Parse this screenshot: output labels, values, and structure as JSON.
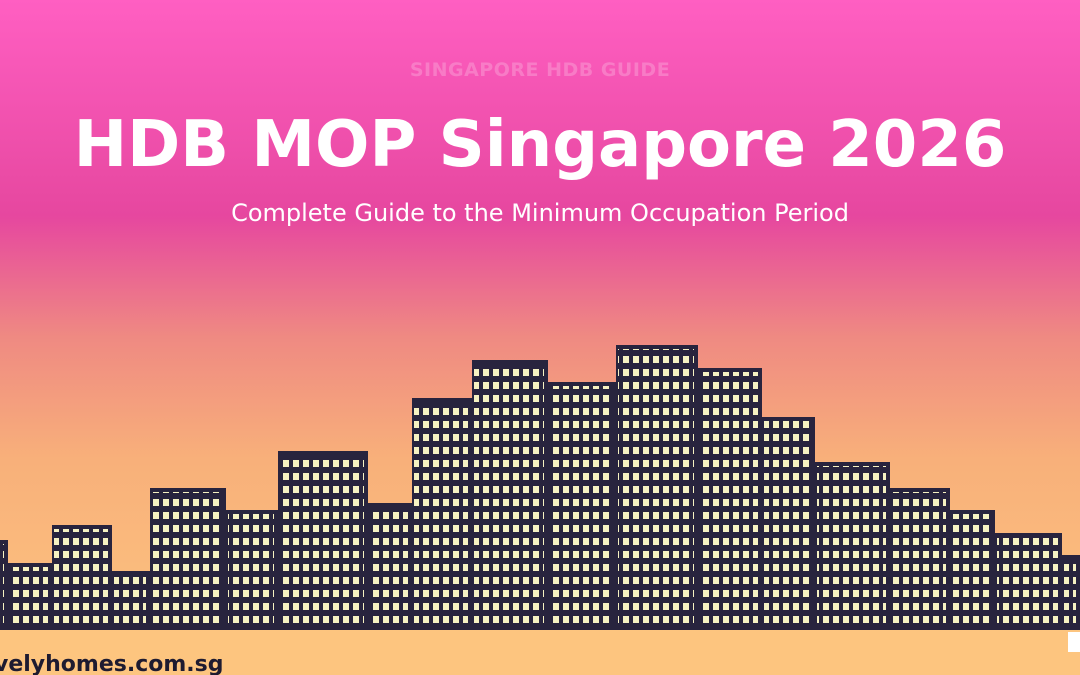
{
  "banner": {
    "kicker": "SINGAPORE HDB GUIDE",
    "title": "HDB MOP Singapore 2026",
    "subtitle": "Complete Guide to the Minimum Occupation Period",
    "site": "velyhomes.com.sg"
  }
}
